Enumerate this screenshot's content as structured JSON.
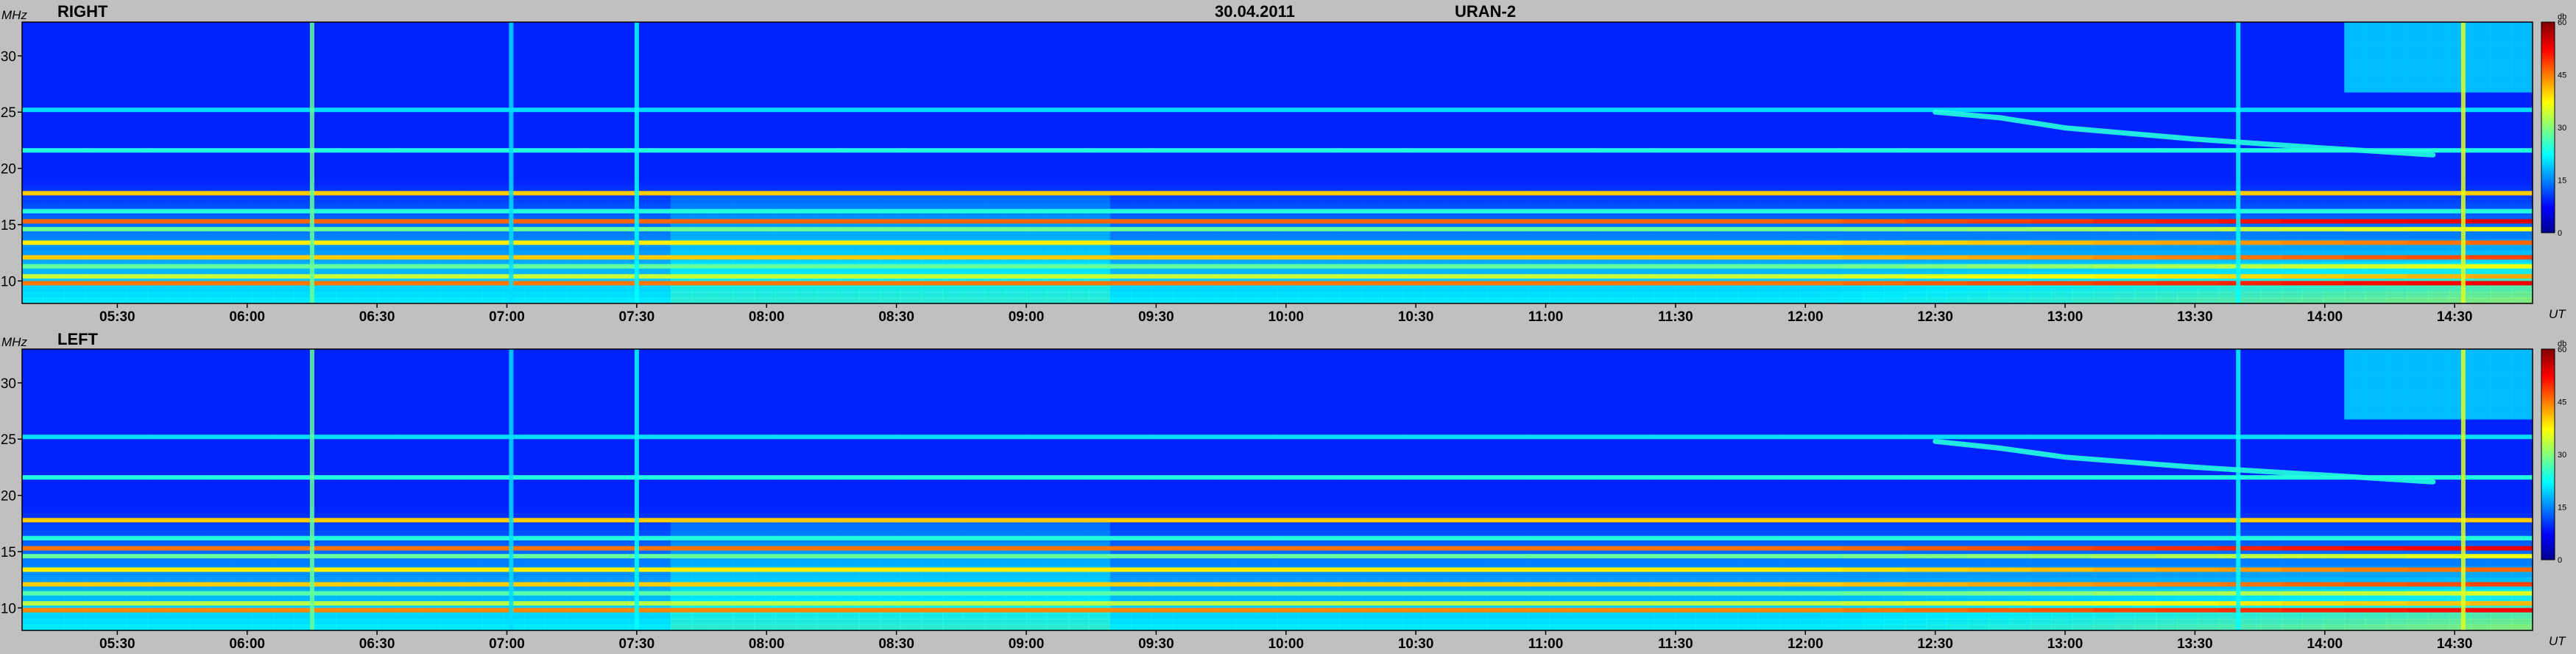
{
  "header": {
    "date": "30.04.2011",
    "instrument": "URAN-2"
  },
  "chart_data": [
    {
      "type": "heatmap",
      "panel": "RIGHT",
      "y_unit": "MHz",
      "x_unit": "UT",
      "ylim": [
        8,
        33
      ],
      "xlim": [
        "05:08",
        "14:48"
      ],
      "yticks": [
        "10",
        "15",
        "20",
        "25",
        "30"
      ],
      "xticks": [
        "05:30",
        "06:00",
        "06:30",
        "07:00",
        "07:30",
        "08:00",
        "08:30",
        "09:00",
        "09:30",
        "10:00",
        "10:30",
        "11:00",
        "11:30",
        "12:00",
        "12:30",
        "13:00",
        "13:30",
        "14:00",
        "14:30"
      ],
      "colorbar": {
        "unit": "db",
        "range": [
          0,
          60
        ],
        "ticks": [
          "0",
          "15",
          "30",
          "45",
          "60"
        ]
      },
      "features": {
        "horizontal_bands_mhz": [
          {
            "f": 9.8,
            "level": 45
          },
          {
            "f": 10.4,
            "level": 34
          },
          {
            "f": 11.3,
            "level": 28
          },
          {
            "f": 12.1,
            "level": 40
          },
          {
            "f": 13.4,
            "level": 38
          },
          {
            "f": 14.6,
            "level": 28
          },
          {
            "f": 15.3,
            "level": 46
          },
          {
            "f": 16.2,
            "level": 24
          },
          {
            "f": 17.8,
            "level": 40
          },
          {
            "f": 21.6,
            "level": 24
          },
          {
            "f": 25.2,
            "level": 20
          }
        ],
        "vertical_bursts_ut": [
          {
            "t": "06:15",
            "level": 28
          },
          {
            "t": "07:01",
            "level": 20
          },
          {
            "t": "07:30",
            "level": 22
          },
          {
            "t": "13:40",
            "level": 22
          },
          {
            "t": "14:32",
            "level": 35
          }
        ],
        "drifting_burst": [
          {
            "t": "12:30",
            "f": 25.0
          },
          {
            "t": "12:45",
            "f": 24.5
          },
          {
            "t": "13:00",
            "f": 23.6
          },
          {
            "t": "13:30",
            "f": 22.6
          },
          {
            "t": "14:00",
            "f": 21.8
          },
          {
            "t": "14:25",
            "f": 21.2
          }
        ]
      }
    },
    {
      "type": "heatmap",
      "panel": "LEFT",
      "y_unit": "MHz",
      "x_unit": "UT",
      "ylim": [
        8,
        33
      ],
      "xlim": [
        "05:08",
        "14:48"
      ],
      "yticks": [
        "10",
        "15",
        "20",
        "25",
        "30"
      ],
      "xticks": [
        "05:30",
        "06:00",
        "06:30",
        "07:00",
        "07:30",
        "08:00",
        "08:30",
        "09:00",
        "09:30",
        "10:00",
        "10:30",
        "11:00",
        "11:30",
        "12:00",
        "12:30",
        "13:00",
        "13:30",
        "14:00",
        "14:30"
      ],
      "colorbar": {
        "unit": "db",
        "range": [
          0,
          60
        ],
        "ticks": [
          "0",
          "15",
          "30",
          "45",
          "60"
        ]
      },
      "features": {
        "horizontal_bands_mhz": [
          {
            "f": 9.8,
            "level": 44
          },
          {
            "f": 10.4,
            "level": 33
          },
          {
            "f": 11.3,
            "level": 27
          },
          {
            "f": 12.1,
            "level": 40
          },
          {
            "f": 13.4,
            "level": 38
          },
          {
            "f": 14.6,
            "level": 28
          },
          {
            "f": 15.3,
            "level": 45
          },
          {
            "f": 16.2,
            "level": 24
          },
          {
            "f": 17.8,
            "level": 40
          },
          {
            "f": 21.6,
            "level": 24
          },
          {
            "f": 25.2,
            "level": 20
          }
        ],
        "vertical_bursts_ut": [
          {
            "t": "06:15",
            "level": 28
          },
          {
            "t": "07:01",
            "level": 20
          },
          {
            "t": "07:30",
            "level": 22
          },
          {
            "t": "13:40",
            "level": 22
          },
          {
            "t": "14:32",
            "level": 35
          }
        ],
        "drifting_burst": [
          {
            "t": "12:30",
            "f": 24.8
          },
          {
            "t": "12:45",
            "f": 24.2
          },
          {
            "t": "13:00",
            "f": 23.4
          },
          {
            "t": "13:30",
            "f": 22.5
          },
          {
            "t": "14:00",
            "f": 21.8
          },
          {
            "t": "14:25",
            "f": 21.2
          }
        ]
      }
    }
  ]
}
